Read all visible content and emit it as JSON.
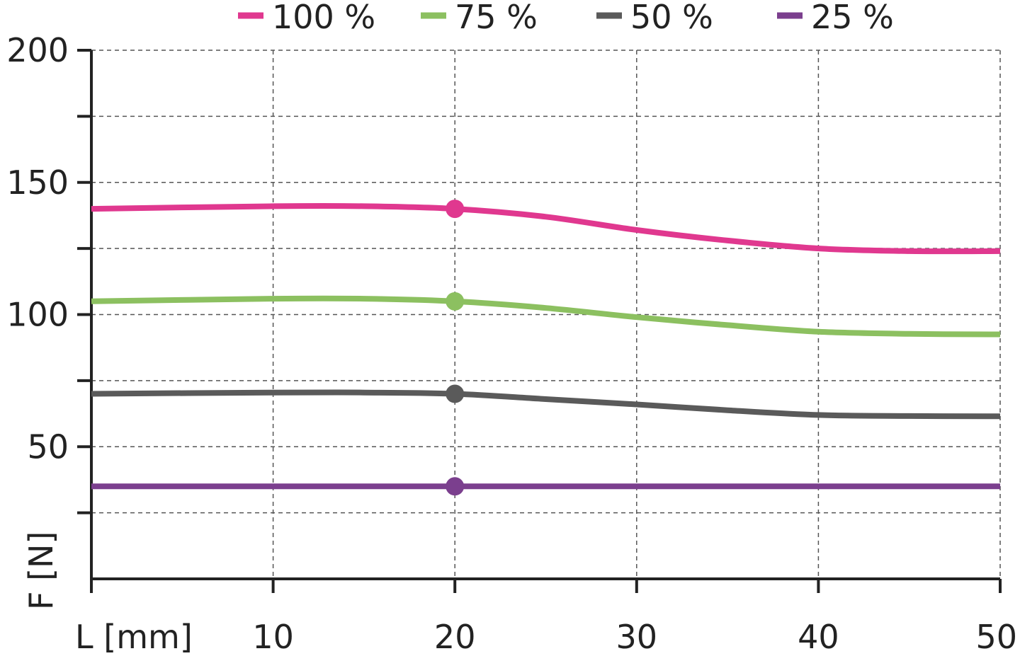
{
  "chart_data": {
    "type": "line",
    "title": "",
    "xlabel": "L [mm]",
    "ylabel": "F [N]",
    "xlim": [
      0,
      50
    ],
    "ylim": [
      0,
      200
    ],
    "x_ticks": [
      10,
      20,
      30,
      40,
      50
    ],
    "y_ticks": [
      50,
      100,
      150,
      200
    ],
    "grid": true,
    "legend_position": "top",
    "marker_x": 20,
    "x": [
      0,
      10,
      15,
      20,
      25,
      30,
      35,
      40,
      45,
      50
    ],
    "series": [
      {
        "name": "100 %",
        "color": "#e0388f",
        "values": [
          140,
          141,
          141,
          140,
          137,
          132,
          128,
          125,
          124,
          124
        ]
      },
      {
        "name": "75 %",
        "color": "#8cc060",
        "values": [
          105,
          106,
          106,
          105,
          102.5,
          99,
          96,
          93.5,
          92.7,
          92.5
        ]
      },
      {
        "name": "50 %",
        "color": "#5a5a5a",
        "values": [
          70,
          70.5,
          70.5,
          70,
          68,
          66,
          63.8,
          62,
          61.6,
          61.5
        ]
      },
      {
        "name": "25 %",
        "color": "#7b3f8e",
        "values": [
          35,
          35,
          35,
          35,
          35,
          35,
          35,
          35,
          35,
          35
        ]
      }
    ]
  }
}
